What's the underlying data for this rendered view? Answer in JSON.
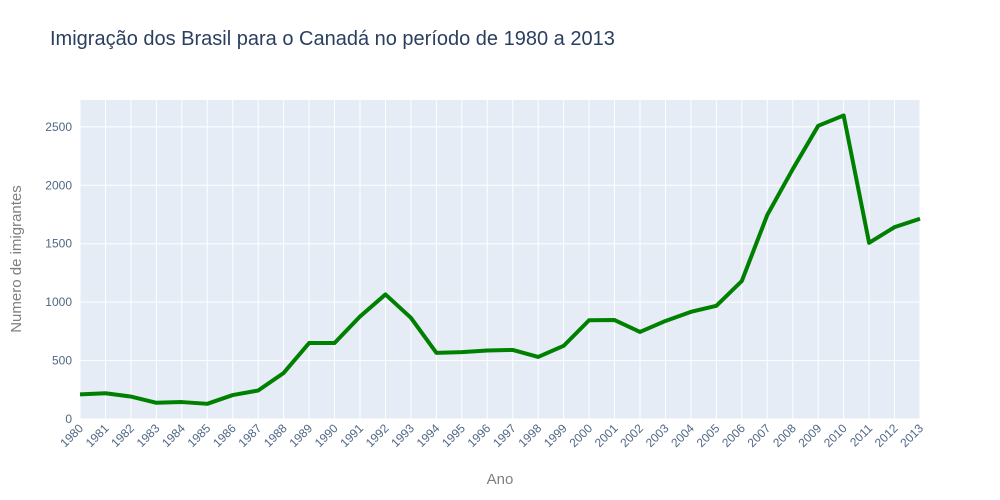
{
  "chart_data": {
    "type": "line",
    "title": "Imigração dos Brasil para o Canadá no período de 1980 a 2013",
    "xlabel": "Ano",
    "ylabel": "Numero de imigrantes",
    "x": [
      "1980",
      "1981",
      "1982",
      "1983",
      "1984",
      "1985",
      "1986",
      "1987",
      "1988",
      "1989",
      "1990",
      "1991",
      "1992",
      "1993",
      "1994",
      "1995",
      "1996",
      "1997",
      "1998",
      "1999",
      "2000",
      "2001",
      "2002",
      "2003",
      "2004",
      "2005",
      "2006",
      "2007",
      "2008",
      "2009",
      "2010",
      "2011",
      "2012",
      "2013"
    ],
    "series": [
      {
        "values": [
          211,
          220,
          192,
          139,
          145,
          130,
          205,
          244,
          394,
          650,
          650,
          877,
          1066,
          866,
          566,
          572,
          586,
          591,
          531,
          626,
          845,
          847,
          745,
          839,
          917,
          969,
          1181,
          1746,
          2138,
          2509,
          2598,
          1508,
          1642,
          1714
        ]
      }
    ],
    "yticks": [
      0,
      500,
      1000,
      1500,
      2000,
      2500
    ],
    "ylim": [
      0,
      2730
    ],
    "grid": true,
    "colors": {
      "line": "#008000",
      "plot_bg": "#e5ecf6",
      "grid": "#ffffff"
    }
  }
}
